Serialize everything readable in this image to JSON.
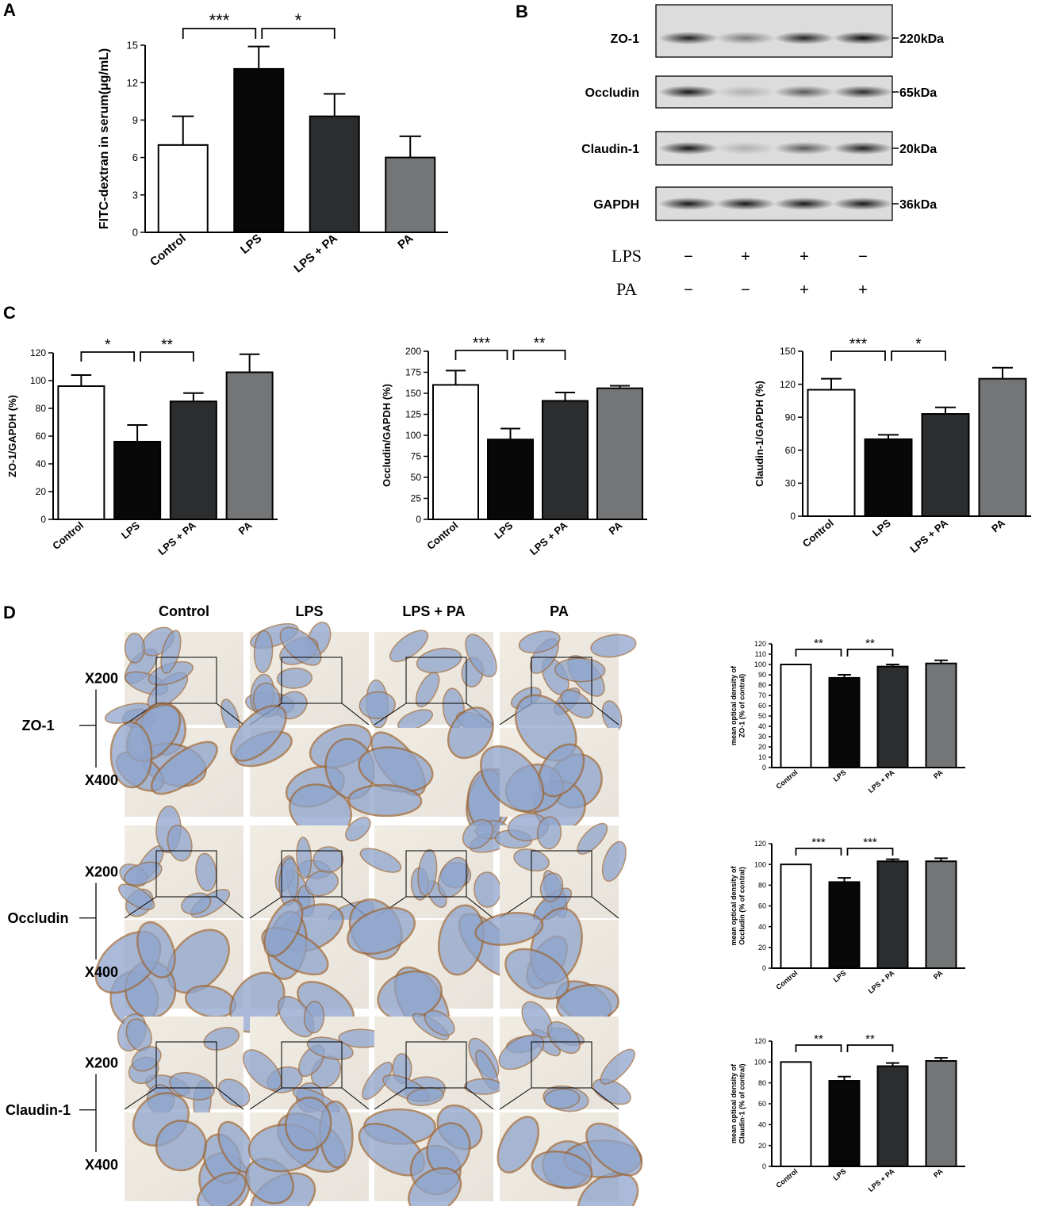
{
  "figure": {
    "panel_labels": [
      "A",
      "B",
      "C",
      "D"
    ]
  },
  "colors": {
    "control": "#ffffff",
    "lps": "#080808",
    "lps_pa": "#2b2d2f",
    "pa": "#737577",
    "stroke": "#000000"
  },
  "chart_data": [
    {
      "id": "A",
      "type": "bar",
      "categories": [
        "Control",
        "LPS",
        "LPS + PA",
        "PA"
      ],
      "values": [
        7.0,
        13.1,
        9.3,
        6.0
      ],
      "errors": [
        2.3,
        1.8,
        1.8,
        1.7
      ],
      "ylabel": "FITC-dextran in serum(μg/mL)",
      "xlabel": "",
      "ylim": [
        0,
        15
      ],
      "yticks": [
        0,
        3,
        6,
        9,
        12,
        15
      ],
      "significance": [
        {
          "from": 0,
          "to": 1,
          "label": "***"
        },
        {
          "from": 1,
          "to": 2,
          "label": "*"
        }
      ]
    },
    {
      "id": "C1",
      "type": "bar",
      "categories": [
        "Control",
        "LPS",
        "LPS + PA",
        "PA"
      ],
      "values": [
        96,
        56,
        85,
        106
      ],
      "errors": [
        8,
        12,
        6,
        13
      ],
      "ylabel": "ZO-1/GAPDH (%)",
      "xlabel": "",
      "ylim": [
        0,
        120
      ],
      "yticks": [
        0,
        20,
        40,
        60,
        80,
        100,
        120
      ],
      "significance": [
        {
          "from": 0,
          "to": 1,
          "label": "*"
        },
        {
          "from": 1,
          "to": 2,
          "label": "**"
        }
      ]
    },
    {
      "id": "C2",
      "type": "bar",
      "categories": [
        "Control",
        "LPS",
        "LPS + PA",
        "PA"
      ],
      "values": [
        160,
        95,
        141,
        156
      ],
      "errors": [
        17,
        13,
        10,
        3
      ],
      "ylabel": "Occludin/GAPDH (%)",
      "xlabel": "",
      "ylim": [
        0,
        200
      ],
      "yticks": [
        0,
        25,
        50,
        75,
        100,
        125,
        150,
        175,
        200
      ],
      "significance": [
        {
          "from": 0,
          "to": 1,
          "label": "***"
        },
        {
          "from": 1,
          "to": 2,
          "label": "**"
        }
      ]
    },
    {
      "id": "C3",
      "type": "bar",
      "categories": [
        "Control",
        "LPS",
        "LPS + PA",
        "PA"
      ],
      "values": [
        115,
        70,
        93,
        125
      ],
      "errors": [
        10,
        4,
        6,
        10
      ],
      "ylabel": "Claudin-1/GAPDH (%)",
      "xlabel": "",
      "ylim": [
        0,
        150
      ],
      "yticks": [
        0,
        30,
        60,
        90,
        120,
        150
      ],
      "significance": [
        {
          "from": 0,
          "to": 1,
          "label": "***"
        },
        {
          "from": 1,
          "to": 2,
          "label": "*"
        }
      ]
    },
    {
      "id": "D1",
      "type": "bar",
      "categories": [
        "Control",
        "LPS",
        "LPS + PA",
        "PA"
      ],
      "values": [
        100,
        87,
        98,
        101
      ],
      "errors": [
        0,
        3,
        2,
        3
      ],
      "ylabel": "mean optical density of ZO-1 (% of contral)",
      "xlabel": "",
      "ylim": [
        0,
        120
      ],
      "yticks": [
        0,
        10,
        20,
        30,
        40,
        50,
        60,
        70,
        80,
        90,
        100,
        110,
        120
      ],
      "significance": [
        {
          "from": 0,
          "to": 1,
          "label": "**"
        },
        {
          "from": 1,
          "to": 2,
          "label": "**"
        }
      ]
    },
    {
      "id": "D2",
      "type": "bar",
      "categories": [
        "Control",
        "LPS",
        "LPS + PA",
        "PA"
      ],
      "values": [
        100,
        83,
        103,
        103
      ],
      "errors": [
        0,
        4,
        2,
        3
      ],
      "ylabel": "mean optical density of Occludin (% of contral)",
      "xlabel": "",
      "ylim": [
        0,
        120
      ],
      "yticks": [
        0,
        20,
        40,
        60,
        80,
        100,
        120
      ],
      "significance": [
        {
          "from": 0,
          "to": 1,
          "label": "***"
        },
        {
          "from": 1,
          "to": 2,
          "label": "***"
        }
      ]
    },
    {
      "id": "D3",
      "type": "bar",
      "categories": [
        "Control",
        "LPS",
        "LPS + PA",
        "PA"
      ],
      "values": [
        100,
        82,
        96,
        101
      ],
      "errors": [
        0,
        4,
        3,
        3
      ],
      "ylabel": "mean optical density of Claudin-1 (% of contral)",
      "xlabel": "",
      "ylim": [
        0,
        120
      ],
      "yticks": [
        0,
        20,
        40,
        60,
        80,
        100,
        120
      ],
      "significance": [
        {
          "from": 0,
          "to": 1,
          "label": "**"
        },
        {
          "from": 1,
          "to": 2,
          "label": "**"
        }
      ]
    }
  ],
  "blot": {
    "rows": [
      {
        "protein": "ZO-1",
        "kda": "220kDa",
        "intensity": [
          0.85,
          0.45,
          0.85,
          0.95
        ]
      },
      {
        "protein": "Occludin",
        "kda": "65kDa",
        "intensity": [
          0.9,
          0.2,
          0.6,
          0.8
        ]
      },
      {
        "protein": "Claudin-1",
        "kda": "20kDa",
        "intensity": [
          0.9,
          0.2,
          0.6,
          0.85
        ]
      },
      {
        "protein": "GAPDH",
        "kda": "36kDa",
        "intensity": [
          0.9,
          0.9,
          0.9,
          0.9
        ]
      }
    ],
    "treatments": [
      {
        "name": "LPS",
        "marks": [
          "−",
          "+",
          "+",
          "−"
        ]
      },
      {
        "name": "PA",
        "marks": [
          "−",
          "−",
          "+",
          "+"
        ]
      }
    ]
  },
  "histology": {
    "columns": [
      "Control",
      "LPS",
      "LPS + PA",
      "PA"
    ],
    "rows": [
      {
        "protein": "ZO-1",
        "mag_low": "X200",
        "mag_high": "X400"
      },
      {
        "protein": "Occludin",
        "mag_low": "X200",
        "mag_high": "X400"
      },
      {
        "protein": "Claudin-1",
        "mag_low": "X200",
        "mag_high": "X400"
      }
    ]
  }
}
